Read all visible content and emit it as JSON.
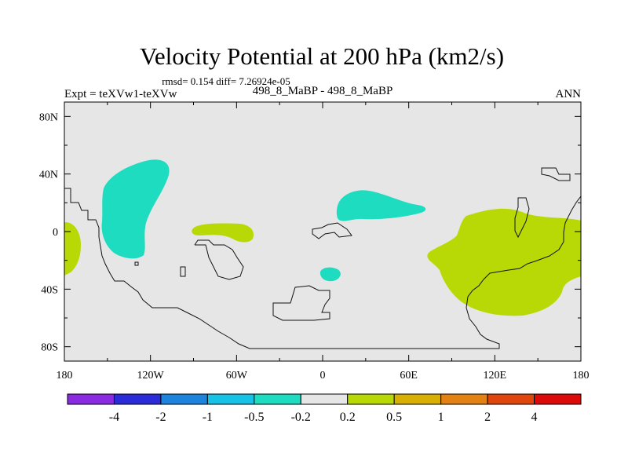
{
  "chart_data": {
    "type": "map-contour",
    "title": "Velocity Potential at 200 hPa (km2/s)",
    "stats": "rmsd= 0.154 diff= 7.26924e-05",
    "left_label": "Expt = teXVw1-teXVw",
    "center_label": "498_8_MaBP - 498_8_MaBP",
    "right_label": "ANN",
    "x_axis": {
      "range": [
        -180,
        180
      ],
      "ticks": [
        {
          "value": -180,
          "label": "180"
        },
        {
          "value": -120,
          "label": "120W"
        },
        {
          "value": -60,
          "label": "60W"
        },
        {
          "value": 0,
          "label": "0"
        },
        {
          "value": 60,
          "label": "60E"
        },
        {
          "value": 120,
          "label": "120E"
        },
        {
          "value": 180,
          "label": "180"
        }
      ]
    },
    "y_axis": {
      "range": [
        -90,
        90
      ],
      "ticks": [
        {
          "value": 80,
          "label": "80N"
        },
        {
          "value": 40,
          "label": "40N"
        },
        {
          "value": 0,
          "label": "0"
        },
        {
          "value": -40,
          "label": "40S"
        },
        {
          "value": -80,
          "label": "80S"
        }
      ]
    },
    "colorbar": {
      "colors": [
        "#8a2be2",
        "#2b2bd9",
        "#1c84dd",
        "#16c2e6",
        "#1ddcc0",
        "#e6e6e6",
        "#b9d906",
        "#d8b004",
        "#e38213",
        "#e0460c",
        "#dd0a0a"
      ],
      "labels": [
        "-4",
        "-2",
        "-1",
        "-0.5",
        "-0.2",
        "0.2",
        "0.5",
        "1",
        "2",
        "4"
      ]
    },
    "regions": [
      {
        "level": "-0.2..0.2",
        "color": "#e6e6e6",
        "description": "background"
      },
      {
        "level": "-0.5..-0.2",
        "color": "#1ddcc0",
        "description": "North Pacific",
        "lon": [
          -152,
          -102
        ],
        "lat": [
          -18,
          49
        ]
      },
      {
        "level": "-0.5..-0.2",
        "color": "#1ddcc0",
        "description": "North Africa / Arabia",
        "lon": [
          10,
          75
        ],
        "lat": [
          6,
          30
        ]
      },
      {
        "level": "-0.5..-0.2",
        "color": "#1ddcc0",
        "description": "South Atlantic",
        "lon": [
          -2,
          13
        ],
        "lat": [
          -36,
          -26
        ]
      },
      {
        "level": "0.2..0.5",
        "color": "#b9d906",
        "description": "Indo-Pacific",
        "lon": [
          72,
          180
        ],
        "lat": [
          -60,
          21
        ]
      },
      {
        "level": "0.2..0.5",
        "color": "#b9d906",
        "description": "Tropical Atlantic",
        "lon": [
          -92,
          -48
        ],
        "lat": [
          -8,
          5
        ]
      },
      {
        "level": "0.2..0.5",
        "color": "#b9d906",
        "description": "Western edge",
        "lon": [
          -180,
          -169
        ],
        "lat": [
          -32,
          7
        ]
      }
    ]
  }
}
